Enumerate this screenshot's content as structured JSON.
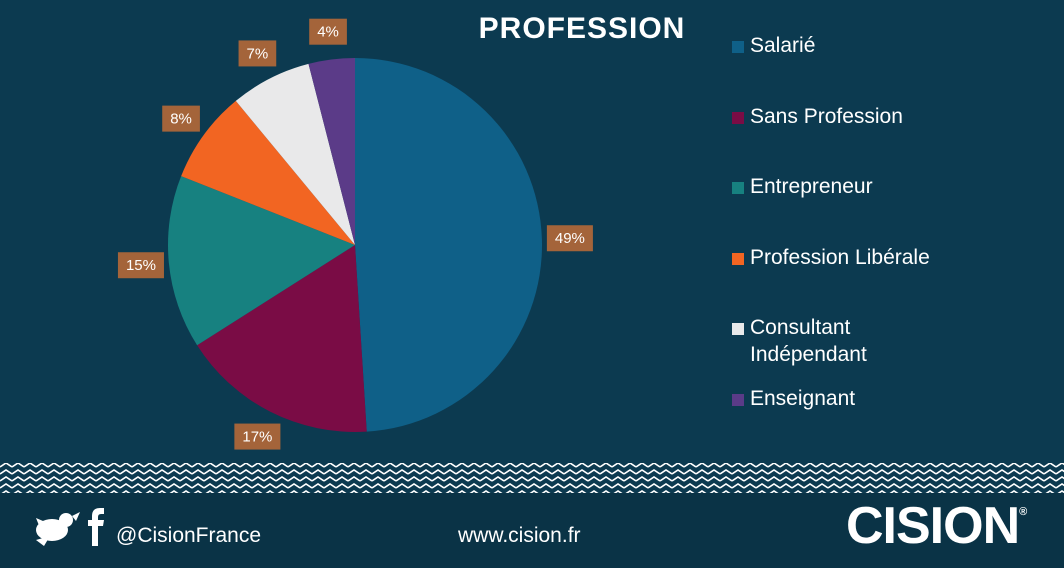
{
  "chart_data": {
    "type": "pie",
    "title": "PROFESSION",
    "categories": [
      "Salarié",
      "Sans Profession",
      "Entrepreneur",
      "Profession Libérale",
      "Consultant Indépendant",
      "Enseignant"
    ],
    "values": [
      49,
      17,
      15,
      8,
      7,
      4
    ],
    "value_labels": [
      "49%",
      "17%",
      "15%",
      "8%",
      "7%",
      "4%"
    ],
    "colors": [
      "#0f6088",
      "#7a0c45",
      "#178180",
      "#f26522",
      "#e9e9ea",
      "#5b3b88"
    ]
  },
  "footer": {
    "handle": "@CisionFrance",
    "url": "www.cision.fr",
    "logo": "CISION",
    "logo_mark": "®"
  }
}
